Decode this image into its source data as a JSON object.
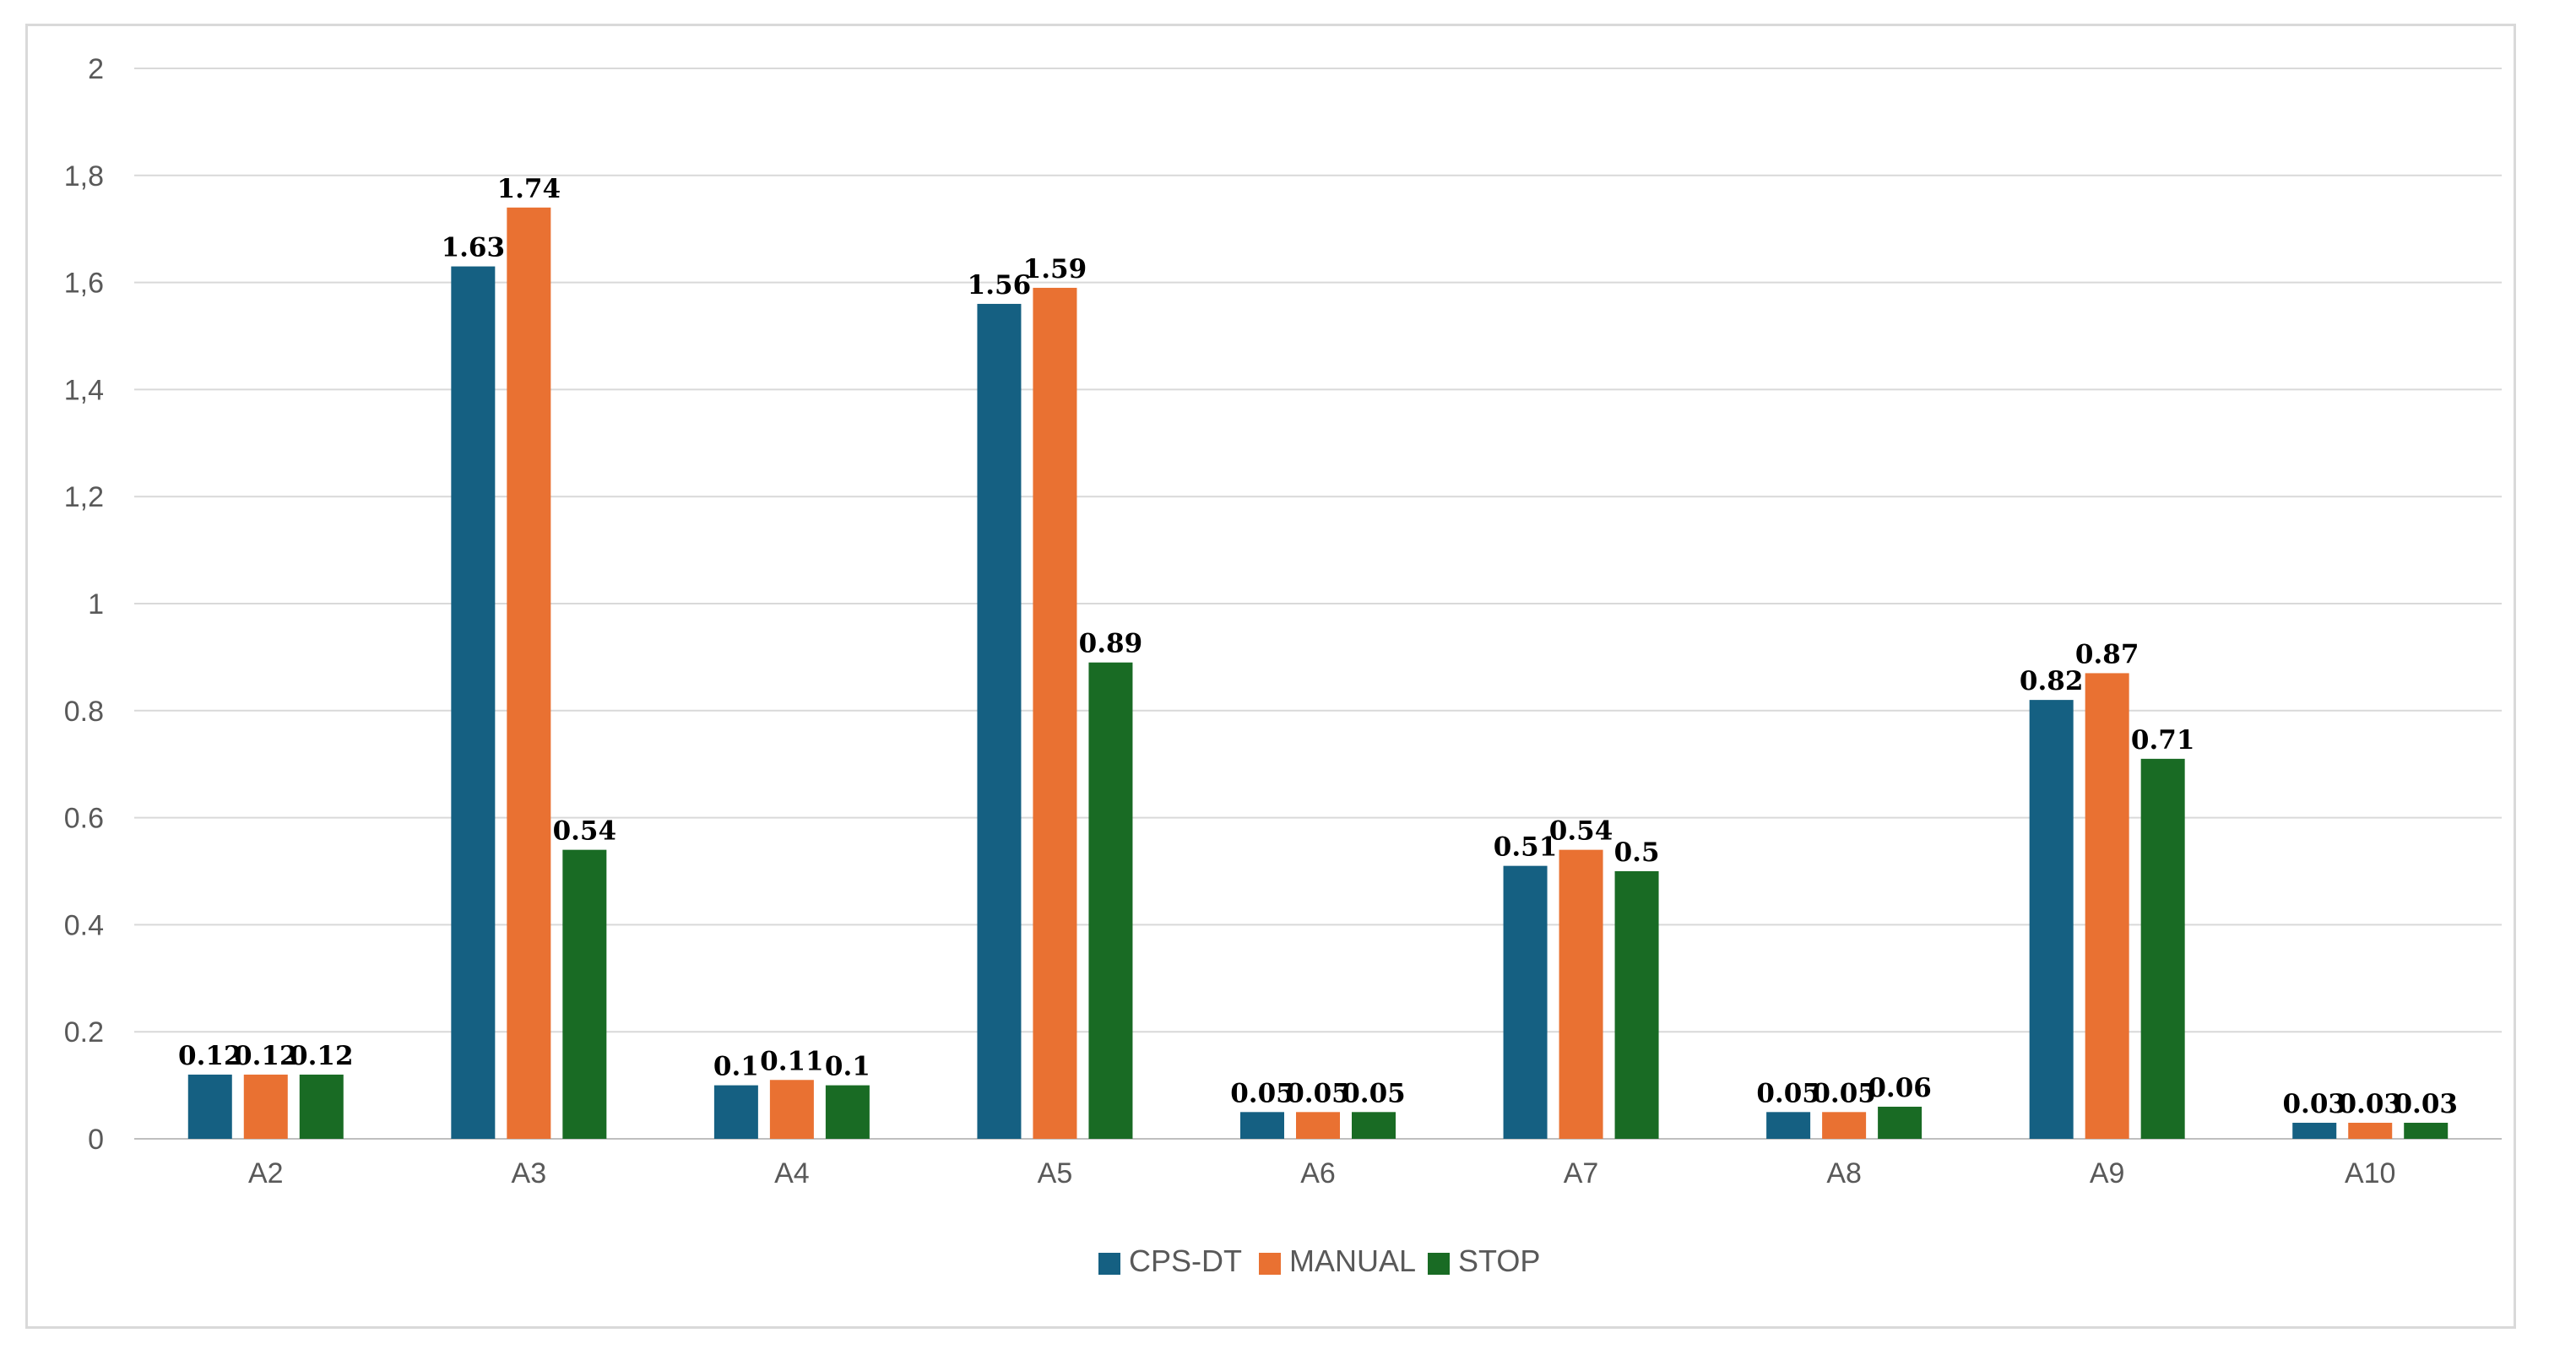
{
  "chart_data": {
    "type": "bar",
    "title": "",
    "xlabel": "",
    "ylabel": "",
    "ylim": [
      0,
      2
    ],
    "y_ticks": [
      "0",
      "0.2",
      "0.4",
      "0.6",
      "0.8",
      "1",
      "1,2",
      "1,4",
      "1,6",
      "1,8",
      "2"
    ],
    "categories": [
      "A2",
      "A3",
      "A4",
      "A5",
      "A6",
      "A7",
      "A8",
      "A9",
      "A10"
    ],
    "grid": true,
    "legend_position": "bottom-center",
    "series": [
      {
        "name": "CPS-DT",
        "color": "#156082",
        "values": [
          0.12,
          1.63,
          0.1,
          1.56,
          0.05,
          0.51,
          0.05,
          0.82,
          0.03
        ],
        "labels": [
          "0.12",
          "1.63",
          "0.1",
          "1.56",
          "0.05",
          "0.51",
          "0.05",
          "0.82",
          "0.03"
        ]
      },
      {
        "name": "MANUAL",
        "color": "#E97132",
        "values": [
          0.12,
          1.74,
          0.11,
          1.59,
          0.05,
          0.54,
          0.05,
          0.87,
          0.03
        ],
        "labels": [
          "0.12",
          "1.74",
          "0.11",
          "1.59",
          "0.05",
          "0.54",
          "0.05",
          "0.87",
          "0.03"
        ]
      },
      {
        "name": "STOP",
        "color": "#196B24",
        "values": [
          0.12,
          0.54,
          0.1,
          0.89,
          0.05,
          0.5,
          0.06,
          0.71,
          0.03
        ],
        "labels": [
          "0.12",
          "0.54",
          "0.1",
          "0.89",
          "0.05",
          "0.5",
          "0.06",
          "0.71",
          "0.03"
        ]
      }
    ]
  }
}
